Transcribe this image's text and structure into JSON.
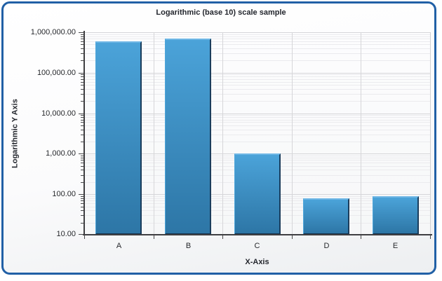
{
  "panel": {
    "border_color": "#2160a6"
  },
  "chart_data": {
    "type": "bar",
    "title": "Logarithmic (base 10) scale sample",
    "xlabel": "X-Axis",
    "ylabel": "Logarithmic Y Axis",
    "categories": [
      "A",
      "B",
      "C",
      "D",
      "E"
    ],
    "values": [
      600000,
      700000,
      1000,
      80,
      90
    ],
    "y_scale": "log10",
    "ylim": [
      10,
      1000000
    ],
    "y_ticks": [
      {
        "value": 1000000,
        "label": "1,000,000.00"
      },
      {
        "value": 100000,
        "label": "100,000.00"
      },
      {
        "value": 10000,
        "label": "10,000.00"
      },
      {
        "value": 1000,
        "label": "1,000.00"
      },
      {
        "value": 100,
        "label": "100.00"
      },
      {
        "value": 10,
        "label": "10.00"
      }
    ],
    "grid": true,
    "legend_position": "none",
    "bar_color_top": "#4ba3d9",
    "bar_color_bottom": "#2d76a6",
    "bar_highlight": "#6fb7e5",
    "bar_shadow": "#1b3d5c"
  }
}
